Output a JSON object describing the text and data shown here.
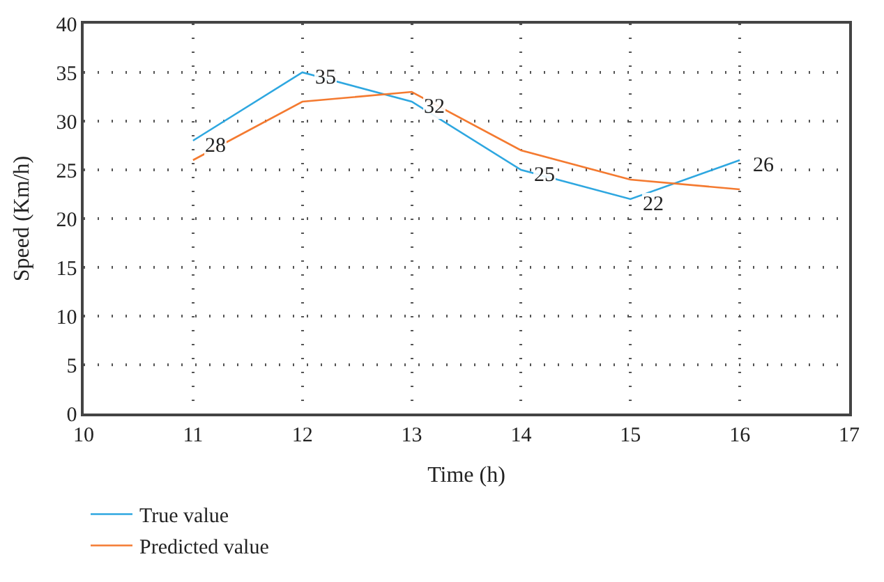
{
  "chart_data": {
    "type": "line",
    "xlabel": "Time (h)",
    "ylabel": "Speed (Km/h)",
    "x": [
      11,
      12,
      13,
      14,
      15,
      16
    ],
    "series": [
      {
        "name": "True value",
        "color": "#2ea7e0",
        "values": [
          28,
          35,
          32,
          25,
          22,
          26
        ],
        "value_labels": [
          "28",
          "35",
          "32",
          "25",
          "22",
          "26"
        ]
      },
      {
        "name": "Predicted value",
        "color": "#f47a30",
        "values": [
          26,
          32,
          33,
          27,
          24,
          23
        ]
      }
    ],
    "xlim": [
      10,
      17
    ],
    "xticks": [
      10,
      11,
      12,
      13,
      14,
      15,
      16,
      17
    ],
    "ylim": [
      0,
      40
    ],
    "yticks": [
      0,
      5,
      10,
      15,
      20,
      25,
      30,
      35,
      40
    ],
    "grid": true,
    "legend": "bottom left",
    "marker": "none",
    "line_style": "solid"
  }
}
